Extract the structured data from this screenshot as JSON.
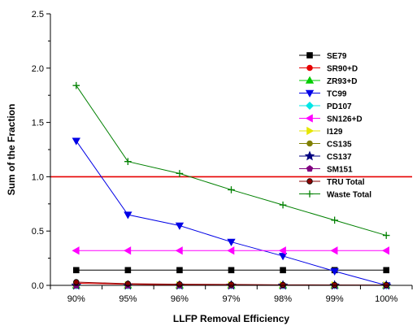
{
  "chart_data": {
    "type": "line",
    "xlabel": "LLFP Removal Efficiency",
    "ylabel": "Sum of the Fraction",
    "ylim": [
      0,
      2.5
    ],
    "yticks": [
      "0.0",
      "0.5",
      "1.0",
      "1.5",
      "2.0",
      "2.5"
    ],
    "categories": [
      "90%",
      "95%",
      "96%",
      "97%",
      "98%",
      "99%",
      "100%"
    ],
    "reference_line": {
      "y": 1.0,
      "color": "#e60000"
    },
    "grid": false,
    "legend_position": "right",
    "series": [
      {
        "name": "SE79",
        "color": "#000000",
        "marker": "square",
        "values": [
          0.14,
          0.14,
          0.14,
          0.14,
          0.14,
          0.14,
          0.14
        ]
      },
      {
        "name": "SR90+D",
        "color": "#e60000",
        "marker": "circle",
        "values": [
          0.02,
          0.01,
          0.005,
          0.003,
          0.002,
          0.001,
          0.0
        ]
      },
      {
        "name": "ZR93+D",
        "color": "#00cc00",
        "marker": "triangle-up",
        "values": [
          0.0,
          0.0,
          0.0,
          0.0,
          0.0,
          0.0,
          0.0
        ]
      },
      {
        "name": "TC99",
        "color": "#0000e6",
        "marker": "triangle-down",
        "values": [
          1.33,
          0.65,
          0.55,
          0.4,
          0.27,
          0.13,
          0.0
        ]
      },
      {
        "name": "PD107",
        "color": "#00e6e6",
        "marker": "diamond",
        "values": [
          0.0,
          0.0,
          0.0,
          0.0,
          0.0,
          0.0,
          0.0
        ]
      },
      {
        "name": "SN126+D",
        "color": "#ff00ff",
        "marker": "triangle-left",
        "values": [
          0.32,
          0.32,
          0.32,
          0.32,
          0.32,
          0.32,
          0.32
        ]
      },
      {
        "name": "I129",
        "color": "#e6e600",
        "marker": "triangle-right",
        "values": [
          0.0,
          0.0,
          0.0,
          0.0,
          0.0,
          0.0,
          0.0
        ]
      },
      {
        "name": "CS135",
        "color": "#808000",
        "marker": "circle",
        "values": [
          0.0,
          0.0,
          0.0,
          0.0,
          0.0,
          0.0,
          0.0
        ]
      },
      {
        "name": "CS137",
        "color": "#000080",
        "marker": "star",
        "values": [
          0.0,
          0.0,
          0.0,
          0.0,
          0.0,
          0.0,
          0.0
        ]
      },
      {
        "name": "SM151",
        "color": "#800080",
        "marker": "pentagon",
        "values": [
          0.0,
          0.0,
          0.0,
          0.0,
          0.0,
          0.0,
          0.0
        ]
      },
      {
        "name": "TRU Total",
        "color": "#8b0000",
        "marker": "half-circle",
        "values": [
          0.03,
          0.015,
          0.01,
          0.008,
          0.005,
          0.004,
          0.003
        ]
      },
      {
        "name": "Waste Total",
        "color": "#008000",
        "marker": "plus",
        "values": [
          1.84,
          1.14,
          1.03,
          0.88,
          0.74,
          0.6,
          0.46
        ]
      }
    ]
  }
}
